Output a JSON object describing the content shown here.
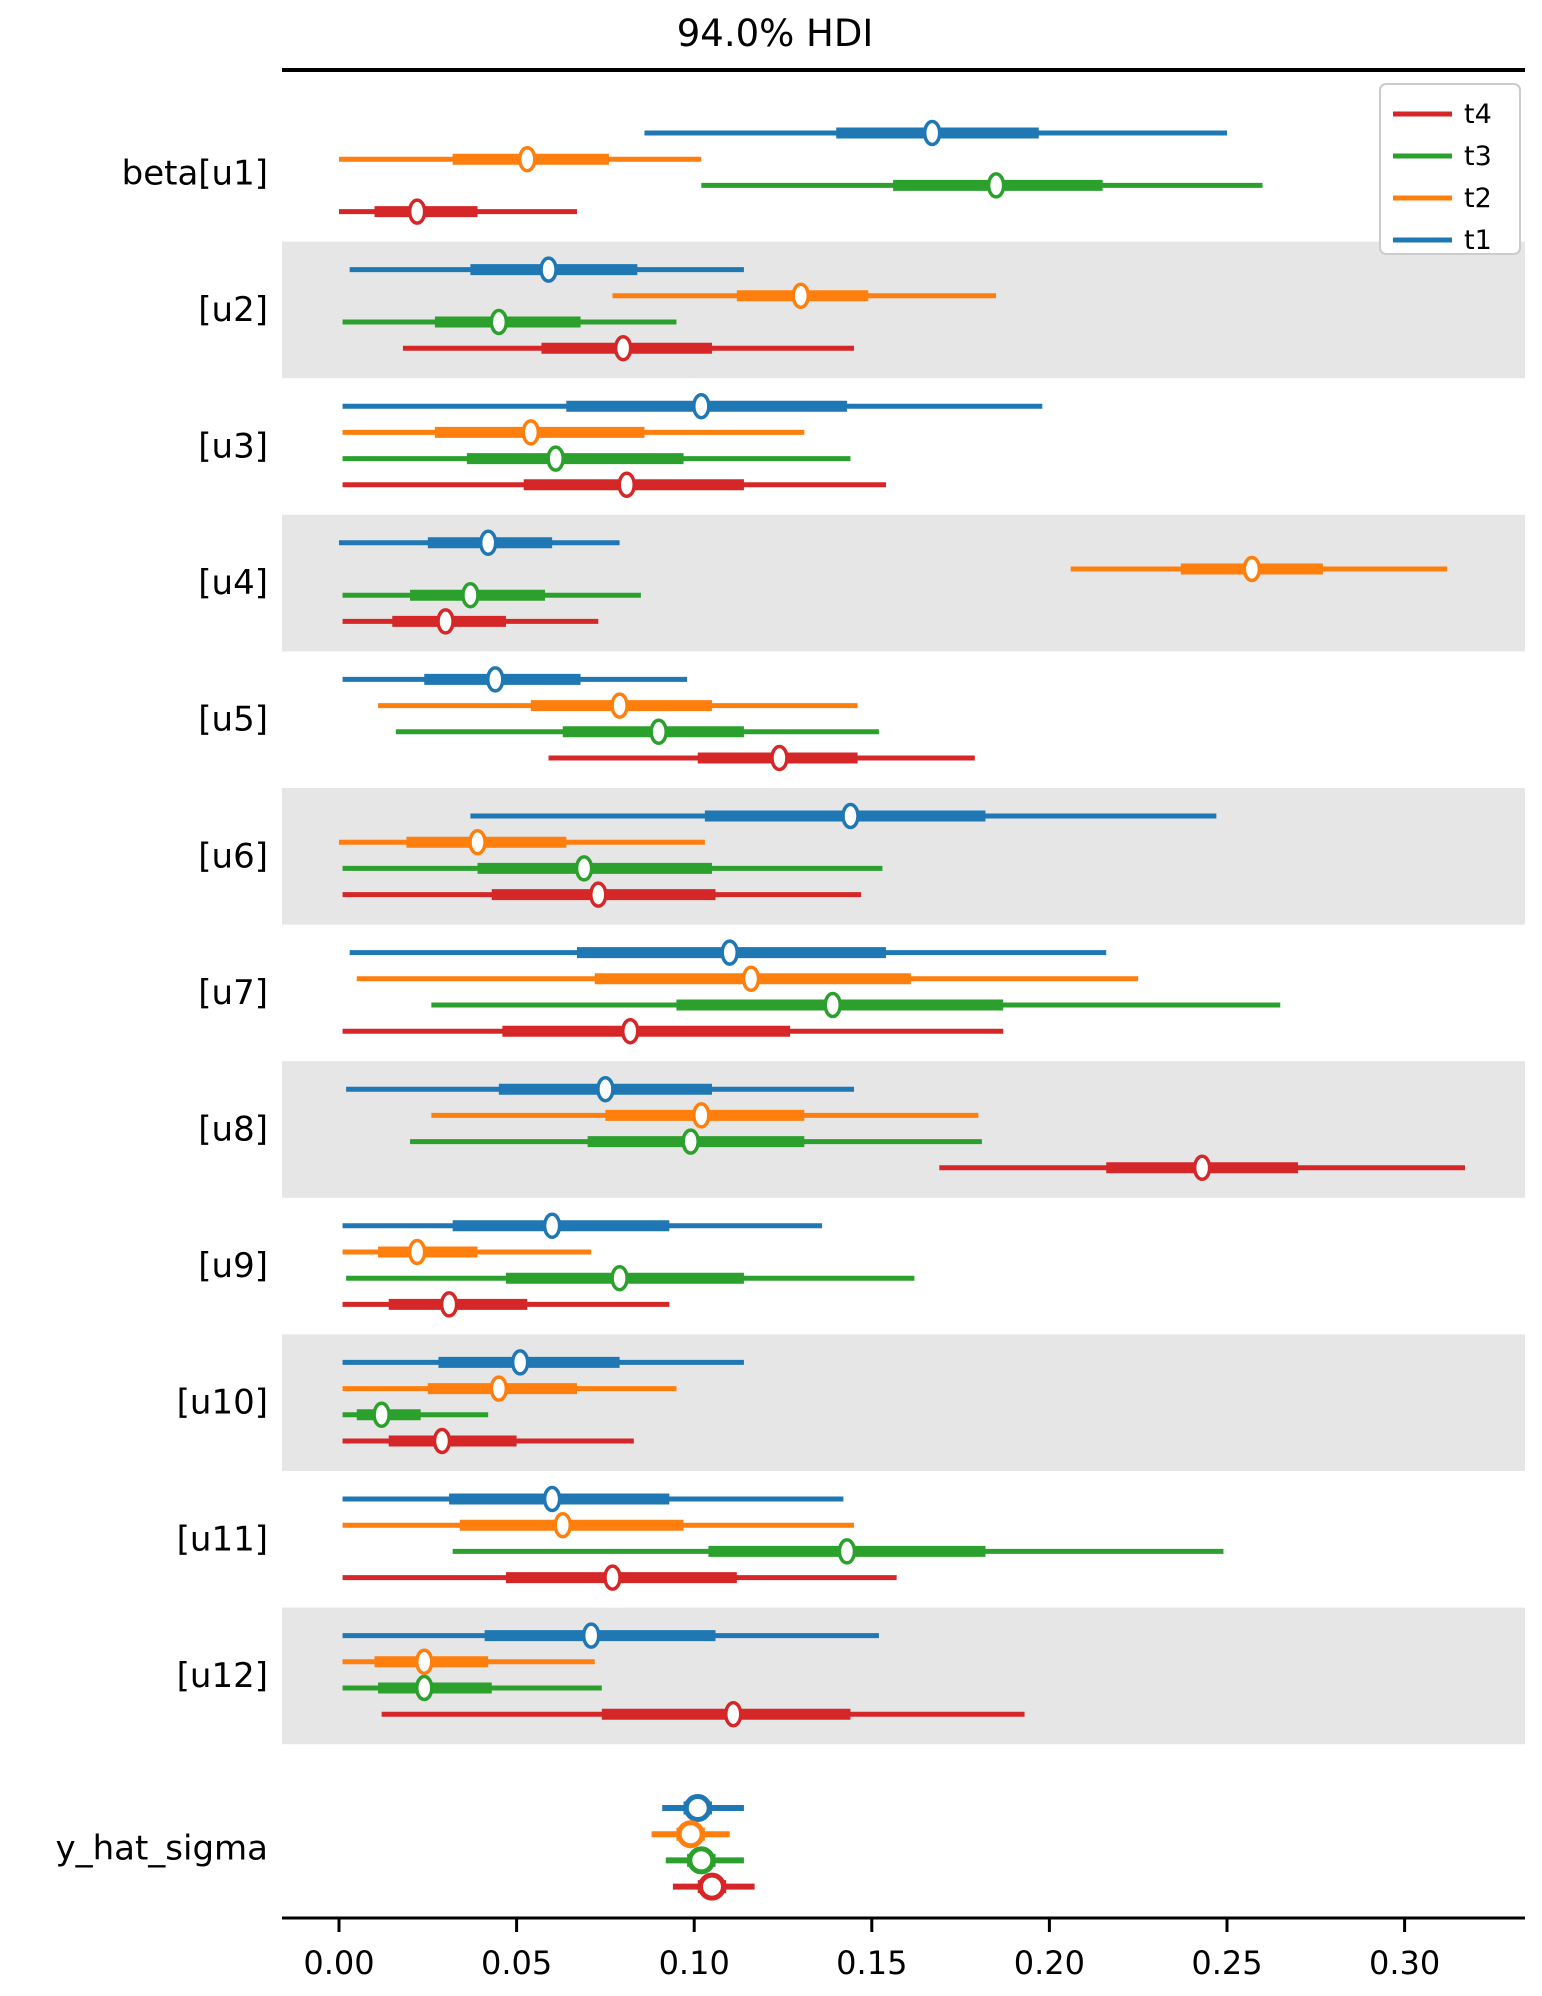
{
  "title": "94.0% HDI",
  "legend": {
    "entries": [
      {
        "label": "t4",
        "color": "#d62728"
      },
      {
        "label": "t3",
        "color": "#2ca02c"
      },
      {
        "label": "t2",
        "color": "#ff7f0e"
      },
      {
        "label": "t1",
        "color": "#1f77b4"
      }
    ]
  },
  "chart_data": {
    "type": "forest",
    "title": "94.0% HDI",
    "xlabel": "",
    "ylabel": "",
    "xlim": [
      -0.016,
      0.333
    ],
    "x_ticks": [
      0.0,
      0.05,
      0.1,
      0.15,
      0.2,
      0.25,
      0.3
    ],
    "x_tick_labels": [
      "0.00",
      "0.05",
      "0.10",
      "0.15",
      "0.20",
      "0.25",
      "0.30"
    ],
    "grid": false,
    "legend_position": "upper right",
    "row_order": [
      "t1",
      "t2",
      "t3",
      "t4"
    ],
    "series_colors": {
      "t1": "#1f77b4",
      "t2": "#ff7f0e",
      "t3": "#2ca02c",
      "t4": "#d62728"
    },
    "band_color": "#e6e6e6",
    "parameters": [
      {
        "label": "beta[u1]",
        "intervals": {
          "t1": {
            "hdi": [
              0.086,
              0.25
            ],
            "quartile": [
              0.14,
              0.197
            ],
            "median": 0.167
          },
          "t2": {
            "hdi": [
              0.0,
              0.102
            ],
            "quartile": [
              0.032,
              0.076
            ],
            "median": 0.053
          },
          "t3": {
            "hdi": [
              0.102,
              0.26
            ],
            "quartile": [
              0.156,
              0.215
            ],
            "median": 0.185
          },
          "t4": {
            "hdi": [
              0.0,
              0.067
            ],
            "quartile": [
              0.01,
              0.039
            ],
            "median": 0.022
          }
        }
      },
      {
        "label": "[u2]",
        "intervals": {
          "t1": {
            "hdi": [
              0.003,
              0.114
            ],
            "quartile": [
              0.037,
              0.084
            ],
            "median": 0.059
          },
          "t2": {
            "hdi": [
              0.077,
              0.185
            ],
            "quartile": [
              0.112,
              0.149
            ],
            "median": 0.13
          },
          "t3": {
            "hdi": [
              0.001,
              0.095
            ],
            "quartile": [
              0.027,
              0.068
            ],
            "median": 0.045
          },
          "t4": {
            "hdi": [
              0.018,
              0.145
            ],
            "quartile": [
              0.057,
              0.105
            ],
            "median": 0.08
          }
        }
      },
      {
        "label": "[u3]",
        "intervals": {
          "t1": {
            "hdi": [
              0.001,
              0.198
            ],
            "quartile": [
              0.064,
              0.143
            ],
            "median": 0.102
          },
          "t2": {
            "hdi": [
              0.001,
              0.131
            ],
            "quartile": [
              0.027,
              0.086
            ],
            "median": 0.054
          },
          "t3": {
            "hdi": [
              0.001,
              0.144
            ],
            "quartile": [
              0.036,
              0.097
            ],
            "median": 0.061
          },
          "t4": {
            "hdi": [
              0.001,
              0.154
            ],
            "quartile": [
              0.052,
              0.114
            ],
            "median": 0.081
          }
        }
      },
      {
        "label": "[u4]",
        "intervals": {
          "t1": {
            "hdi": [
              0.0,
              0.079
            ],
            "quartile": [
              0.025,
              0.06
            ],
            "median": 0.042
          },
          "t2": {
            "hdi": [
              0.206,
              0.312
            ],
            "quartile": [
              0.237,
              0.277
            ],
            "median": 0.257
          },
          "t3": {
            "hdi": [
              0.001,
              0.085
            ],
            "quartile": [
              0.02,
              0.058
            ],
            "median": 0.037
          },
          "t4": {
            "hdi": [
              0.001,
              0.073
            ],
            "quartile": [
              0.015,
              0.047
            ],
            "median": 0.03
          }
        }
      },
      {
        "label": "[u5]",
        "intervals": {
          "t1": {
            "hdi": [
              0.001,
              0.098
            ],
            "quartile": [
              0.024,
              0.068
            ],
            "median": 0.044
          },
          "t2": {
            "hdi": [
              0.011,
              0.146
            ],
            "quartile": [
              0.054,
              0.105
            ],
            "median": 0.079
          },
          "t3": {
            "hdi": [
              0.016,
              0.152
            ],
            "quartile": [
              0.063,
              0.114
            ],
            "median": 0.09
          },
          "t4": {
            "hdi": [
              0.059,
              0.179
            ],
            "quartile": [
              0.101,
              0.146
            ],
            "median": 0.124
          }
        }
      },
      {
        "label": "[u6]",
        "intervals": {
          "t1": {
            "hdi": [
              0.037,
              0.247
            ],
            "quartile": [
              0.103,
              0.182
            ],
            "median": 0.144
          },
          "t2": {
            "hdi": [
              0.0,
              0.103
            ],
            "quartile": [
              0.019,
              0.064
            ],
            "median": 0.039
          },
          "t3": {
            "hdi": [
              0.001,
              0.153
            ],
            "quartile": [
              0.039,
              0.105
            ],
            "median": 0.069
          },
          "t4": {
            "hdi": [
              0.001,
              0.147
            ],
            "quartile": [
              0.043,
              0.106
            ],
            "median": 0.073
          }
        }
      },
      {
        "label": "[u7]",
        "intervals": {
          "t1": {
            "hdi": [
              0.003,
              0.216
            ],
            "quartile": [
              0.067,
              0.154
            ],
            "median": 0.11
          },
          "t2": {
            "hdi": [
              0.005,
              0.225
            ],
            "quartile": [
              0.072,
              0.161
            ],
            "median": 0.116
          },
          "t3": {
            "hdi": [
              0.026,
              0.265
            ],
            "quartile": [
              0.095,
              0.187
            ],
            "median": 0.139
          },
          "t4": {
            "hdi": [
              0.001,
              0.187
            ],
            "quartile": [
              0.046,
              0.127
            ],
            "median": 0.082
          }
        }
      },
      {
        "label": "[u8]",
        "intervals": {
          "t1": {
            "hdi": [
              0.002,
              0.145
            ],
            "quartile": [
              0.045,
              0.105
            ],
            "median": 0.075
          },
          "t2": {
            "hdi": [
              0.026,
              0.18
            ],
            "quartile": [
              0.075,
              0.131
            ],
            "median": 0.102
          },
          "t3": {
            "hdi": [
              0.02,
              0.181
            ],
            "quartile": [
              0.07,
              0.131
            ],
            "median": 0.099
          },
          "t4": {
            "hdi": [
              0.169,
              0.317
            ],
            "quartile": [
              0.216,
              0.27
            ],
            "median": 0.243
          }
        }
      },
      {
        "label": "[u9]",
        "intervals": {
          "t1": {
            "hdi": [
              0.001,
              0.136
            ],
            "quartile": [
              0.032,
              0.093
            ],
            "median": 0.06
          },
          "t2": {
            "hdi": [
              0.001,
              0.071
            ],
            "quartile": [
              0.011,
              0.039
            ],
            "median": 0.022
          },
          "t3": {
            "hdi": [
              0.002,
              0.162
            ],
            "quartile": [
              0.047,
              0.114
            ],
            "median": 0.079
          },
          "t4": {
            "hdi": [
              0.001,
              0.093
            ],
            "quartile": [
              0.014,
              0.053
            ],
            "median": 0.031
          }
        }
      },
      {
        "label": "[u10]",
        "intervals": {
          "t1": {
            "hdi": [
              0.001,
              0.114
            ],
            "quartile": [
              0.028,
              0.079
            ],
            "median": 0.051
          },
          "t2": {
            "hdi": [
              0.001,
              0.095
            ],
            "quartile": [
              0.025,
              0.067
            ],
            "median": 0.045
          },
          "t3": {
            "hdi": [
              0.001,
              0.042
            ],
            "quartile": [
              0.005,
              0.023
            ],
            "median": 0.012
          },
          "t4": {
            "hdi": [
              0.001,
              0.083
            ],
            "quartile": [
              0.014,
              0.05
            ],
            "median": 0.029
          }
        }
      },
      {
        "label": "[u11]",
        "intervals": {
          "t1": {
            "hdi": [
              0.001,
              0.142
            ],
            "quartile": [
              0.031,
              0.093
            ],
            "median": 0.06
          },
          "t2": {
            "hdi": [
              0.001,
              0.145
            ],
            "quartile": [
              0.034,
              0.097
            ],
            "median": 0.063
          },
          "t3": {
            "hdi": [
              0.032,
              0.249
            ],
            "quartile": [
              0.104,
              0.182
            ],
            "median": 0.143
          },
          "t4": {
            "hdi": [
              0.001,
              0.157
            ],
            "quartile": [
              0.047,
              0.112
            ],
            "median": 0.077
          }
        }
      },
      {
        "label": "[u12]",
        "intervals": {
          "t1": {
            "hdi": [
              0.001,
              0.152
            ],
            "quartile": [
              0.041,
              0.106
            ],
            "median": 0.071
          },
          "t2": {
            "hdi": [
              0.001,
              0.072
            ],
            "quartile": [
              0.01,
              0.042
            ],
            "median": 0.024
          },
          "t3": {
            "hdi": [
              0.001,
              0.074
            ],
            "quartile": [
              0.011,
              0.043
            ],
            "median": 0.024
          },
          "t4": {
            "hdi": [
              0.012,
              0.193
            ],
            "quartile": [
              0.074,
              0.144
            ],
            "median": 0.111
          }
        }
      },
      {
        "label": "y_hat_sigma",
        "intervals": {
          "t1": {
            "hdi": [
              0.091,
              0.114
            ],
            "quartile": [
              0.097,
              0.105
            ],
            "median": 0.101
          },
          "t2": {
            "hdi": [
              0.088,
              0.11
            ],
            "quartile": [
              0.095,
              0.103
            ],
            "median": 0.099
          },
          "t3": {
            "hdi": [
              0.092,
              0.114
            ],
            "quartile": [
              0.098,
              0.106
            ],
            "median": 0.102
          },
          "t4": {
            "hdi": [
              0.094,
              0.117
            ],
            "quartile": [
              0.101,
              0.109
            ],
            "median": 0.105
          }
        }
      }
    ]
  }
}
